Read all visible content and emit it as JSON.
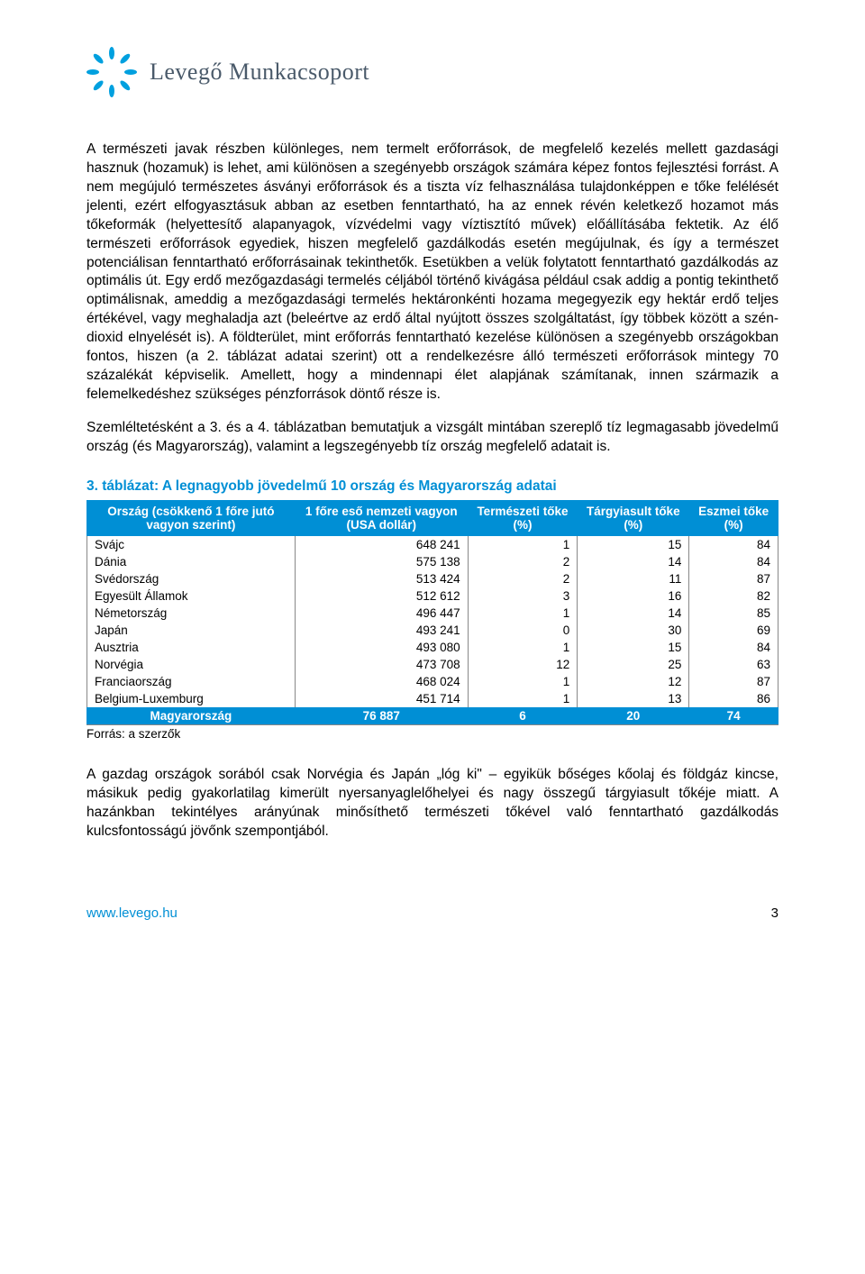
{
  "brand": {
    "name": "Levegő Munkacsoport",
    "logo_color": "#00a0df",
    "logo_text_color": "#4a5a6a"
  },
  "paragraphs": {
    "p1": "A természeti javak részben különleges, nem termelt erőforrások, de megfelelő kezelés mellett gazdasági hasznuk (hozamuk) is lehet, ami különösen a szegényebb országok számára képez fontos fejlesztési forrást. A nem megújuló természetes ásványi erőforrások és a tiszta víz felhasználása tulajdonképpen e tőke felélését jelenti, ezért elfogyasztásuk abban az esetben fenntartható, ha az ennek révén keletkező hozamot más tőkeformák (helyettesítő alapanyagok, vízvédelmi vagy víztisztító művek) előállításába fektetik. Az élő természeti erőforrások egyediek, hiszen megfelelő gazdálkodás esetén megújulnak, és így a természet potenciálisan fenntartható erőforrásainak tekinthetők. Esetükben a velük folytatott fenntartható gazdálkodás az optimális út. Egy erdő mezőgazdasági termelés céljából történő kivágása például csak addig a pontig tekinthető optimálisnak, ameddig a mezőgazdasági termelés hektáronkénti hozama megegyezik egy hektár erdő teljes értékével, vagy meghaladja azt (beleértve az erdő által nyújtott összes szolgáltatást, így többek között a szén-dioxid elnyelését is). A földterület, mint erőforrás fenntartható kezelése különösen a szegényebb országokban fontos, hiszen (a 2. táblázat adatai szerint) ott a rendelkezésre álló természeti erőforrások mintegy 70 százalékát képviselik. Amellett, hogy a mindennapi élet alapjának számítanak, innen származik a felemelkedéshez szükséges pénzforrások döntő része is.",
    "p2": "Szemléltetésként a 3. és a 4. táblázatban bemutatjuk a vizsgált mintában szereplő tíz legmagasabb jövedelmű ország (és Magyarország), valamint a legszegényebb tíz ország megfelelő adatait is.",
    "p3": "A gazdag országok sorából csak Norvégia és Japán „lóg ki\" – egyikük bőséges kőolaj és földgáz kincse, másikuk pedig gyakorlatilag kimerült nyersanyaglelőhelyei és nagy összegű tárgyiasult tőkéje miatt. A hazánkban tekintélyes arányúnak minősíthető természeti tőkével való fenntartható gazdálkodás kulcsfontosságú jövőnk szempontjából."
  },
  "table": {
    "title": "3. táblázat: A legnagyobb jövedelmű 10 ország és Magyarország adatai",
    "title_color": "#008fd5",
    "header_bg": "#008fd5",
    "header_fg": "#ffffff",
    "columns": [
      "Ország (csökkenő 1 főre jutó vagyon szerint)",
      "1 főre eső nemzeti vagyon (USA dollár)",
      "Természeti tőke (%)",
      "Tárgyiasult tőke (%)",
      "Eszmei tőke (%)"
    ],
    "rows": [
      {
        "country": "Svájc",
        "wealth": "648 241",
        "nat": "1",
        "prod": "15",
        "intan": "84"
      },
      {
        "country": "Dánia",
        "wealth": "575 138",
        "nat": "2",
        "prod": "14",
        "intan": "84"
      },
      {
        "country": "Svédország",
        "wealth": "513 424",
        "nat": "2",
        "prod": "11",
        "intan": "87"
      },
      {
        "country": "Egyesült Államok",
        "wealth": "512 612",
        "nat": "3",
        "prod": "16",
        "intan": "82"
      },
      {
        "country": "Németország",
        "wealth": "496 447",
        "nat": "1",
        "prod": "14",
        "intan": "85"
      },
      {
        "country": "Japán",
        "wealth": "493 241",
        "nat": "0",
        "prod": "30",
        "intan": "69"
      },
      {
        "country": "Ausztria",
        "wealth": "493 080",
        "nat": "1",
        "prod": "15",
        "intan": "84"
      },
      {
        "country": "Norvégia",
        "wealth": "473 708",
        "nat": "12",
        "prod": "25",
        "intan": "63"
      },
      {
        "country": "Franciaország",
        "wealth": "468 024",
        "nat": "1",
        "prod": "12",
        "intan": "87"
      },
      {
        "country": "Belgium-Luxemburg",
        "wealth": "451 714",
        "nat": "1",
        "prod": "13",
        "intan": "86"
      }
    ],
    "highlight_row": {
      "country": "Magyarország",
      "wealth": "76 887",
      "nat": "6",
      "prod": "20",
      "intan": "74"
    },
    "source": "Forrás: a szerzők"
  },
  "footer": {
    "url": "www.levego.hu",
    "url_color": "#008fd5",
    "page": "3"
  }
}
